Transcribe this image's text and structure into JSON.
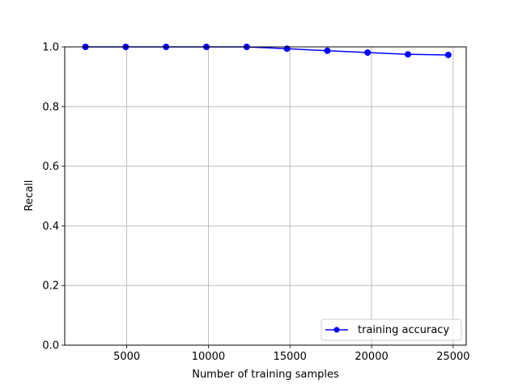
{
  "chart_data": {
    "type": "line",
    "title": "",
    "xlabel": "Number of training samples",
    "ylabel": "Recall",
    "xlim": [
      1200,
      25800
    ],
    "ylim": [
      0.0,
      1.0
    ],
    "xticks": [
      5000,
      10000,
      15000,
      20000,
      25000
    ],
    "yticks": [
      0.0,
      0.2,
      0.4,
      0.6,
      0.8,
      1.0
    ],
    "xtick_labels": [
      "5000",
      "10000",
      "15000",
      "20000",
      "25000"
    ],
    "ytick_labels": [
      "0.0",
      "0.2",
      "0.4",
      "0.6",
      "0.8",
      "1.0"
    ],
    "grid": true,
    "legend_position": "lower-right",
    "series": [
      {
        "name": "training accuracy",
        "color": "#0000ff",
        "marker": "circle",
        "x": [
          2470,
          4940,
          7410,
          9880,
          12350,
          14820,
          17290,
          19760,
          22230,
          24700
        ],
        "y": [
          1.0,
          1.0,
          1.0,
          1.0,
          1.0,
          0.994,
          0.987,
          0.981,
          0.975,
          0.973
        ]
      }
    ]
  }
}
